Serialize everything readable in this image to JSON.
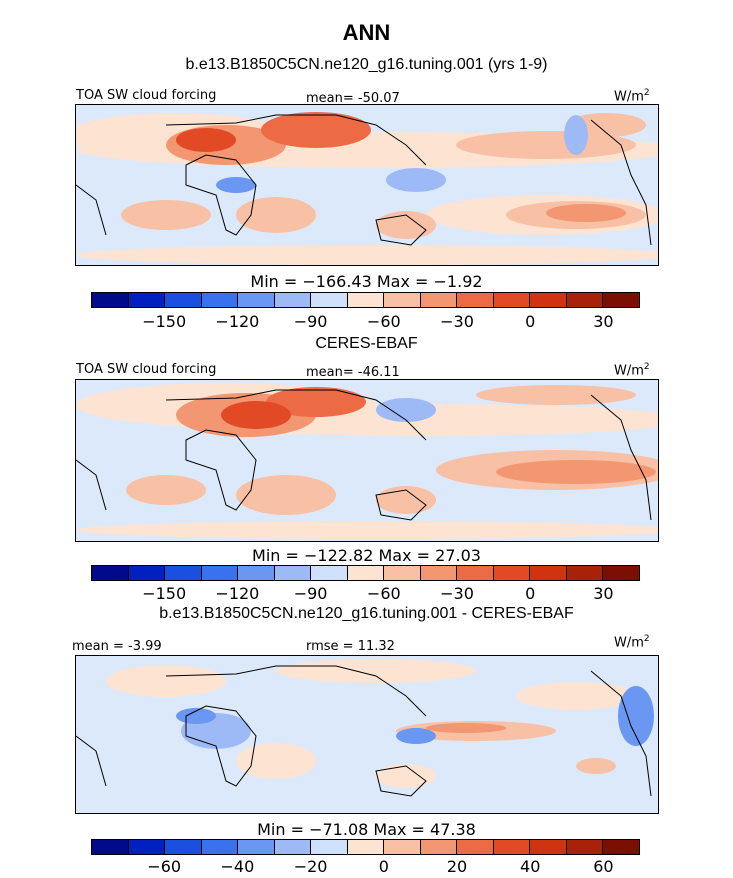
{
  "title": "ANN",
  "panels": [
    {
      "heading": "b.e13.B1850C5CN.ne120_g16.tuning.001 (yrs 1-9)",
      "left_label": "TOA SW cloud forcing",
      "mid_label": "mean= -50.07",
      "units": "W/m",
      "units_sup": "2",
      "minmax": "Min = −166.43 Max =  −1.92",
      "cbar_colors": [
        "#000a8b",
        "#0020c0",
        "#1a4fe0",
        "#3a72ee",
        "#6a97f2",
        "#9ebaf6",
        "#cfe0fb",
        "#fde4d2",
        "#f8c0a4",
        "#f39672",
        "#ec6a44",
        "#e24a25",
        "#cf3310",
        "#a8220a",
        "#7c0f04"
      ],
      "ticks": [
        "−150",
        "−120",
        "−90",
        "−60",
        "−30",
        "0",
        "30"
      ]
    },
    {
      "heading": "CERES-EBAF",
      "left_label": "TOA SW cloud forcing",
      "mid_label": "mean= -46.11",
      "units": "W/m",
      "units_sup": "2",
      "minmax": "Min = −122.82 Max =  27.03",
      "cbar_colors": [
        "#000a8b",
        "#0020c0",
        "#1a4fe0",
        "#3a72ee",
        "#6a97f2",
        "#9ebaf6",
        "#cfe0fb",
        "#fde4d2",
        "#f8c0a4",
        "#f39672",
        "#ec6a44",
        "#e24a25",
        "#cf3310",
        "#a8220a",
        "#7c0f04"
      ],
      "ticks": [
        "−150",
        "−120",
        "−90",
        "−60",
        "−30",
        "0",
        "30"
      ]
    },
    {
      "heading": "b.e13.B1850C5CN.ne120_g16.tuning.001 - CERES-EBAF",
      "left_label": "mean =  -3.99",
      "mid_label": "rmse =  11.32",
      "units": "W/m",
      "units_sup": "2",
      "minmax": "Min = −71.08 Max =  47.38",
      "cbar_colors": [
        "#000a8b",
        "#0020c0",
        "#1a4fe0",
        "#3a72ee",
        "#6a97f2",
        "#9ebaf6",
        "#cfe0fb",
        "#fde4d2",
        "#f8c0a4",
        "#f39672",
        "#ec6a44",
        "#e24a25",
        "#cf3310",
        "#a8220a",
        "#7c0f04"
      ],
      "ticks": [
        "−60",
        "−40",
        "−20",
        "0",
        "20",
        "40",
        "60"
      ]
    }
  ]
}
